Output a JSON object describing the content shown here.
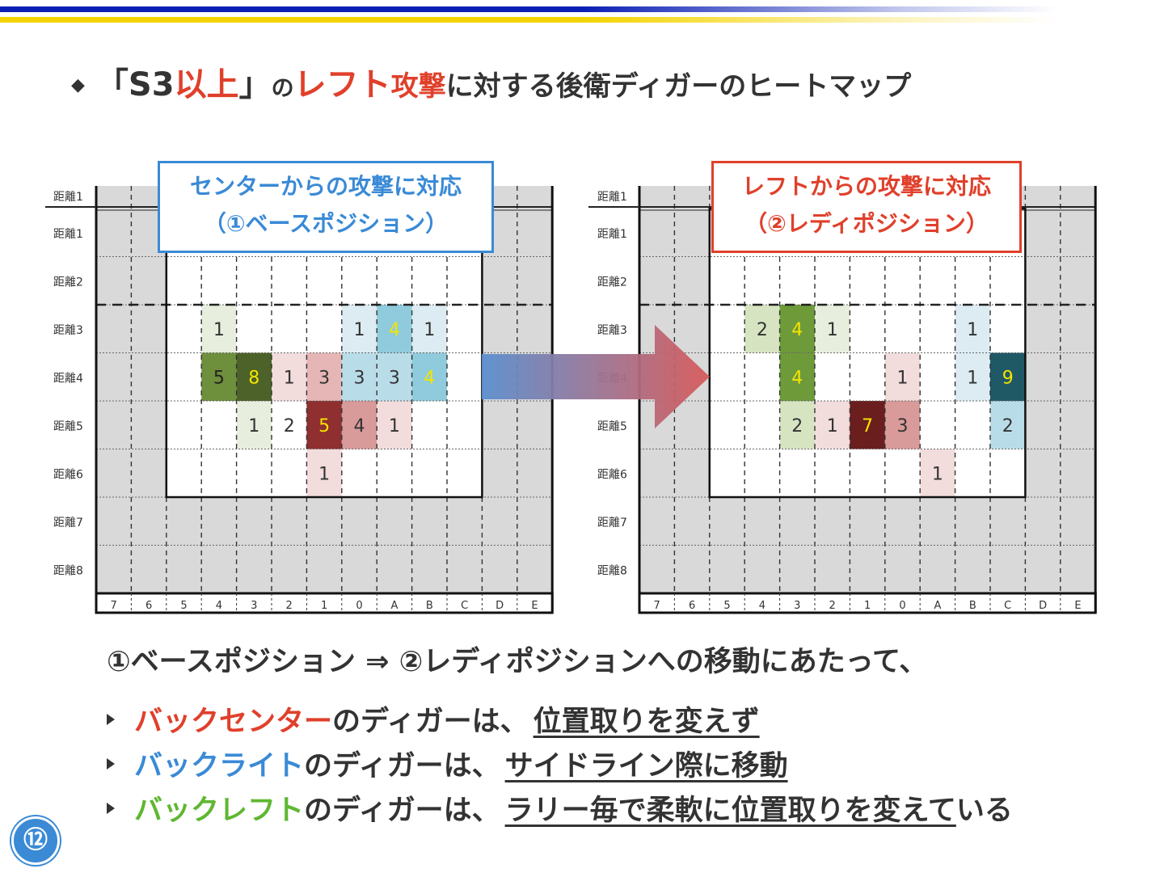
{
  "title": {
    "diamond": "◆",
    "open_bracket": "「",
    "s3": "S3",
    "ijou": "以上",
    "close_bracket": "」",
    "no1": "の",
    "left": "レフト",
    "kougeki": "攻撃",
    "rest": "に対する後衛ディガーのヒートマップ"
  },
  "grids": {
    "rows": [
      "距離1",
      "距離1",
      "距離2",
      "距離3",
      "距離4",
      "距離5",
      "距離6",
      "距離7",
      "距離8"
    ],
    "columns": [
      "7",
      "6",
      "5",
      "4",
      "3",
      "2",
      "1",
      "0",
      "A",
      "B",
      "C",
      "D",
      "E"
    ],
    "left": {
      "callout_line1": "センターからの攻撃に対応",
      "callout_line2": "（①ベースポジション）",
      "cells": [
        {
          "row": 3,
          "col": "4",
          "value": 1,
          "color": "#e8eedd",
          "text_color": "#333333"
        },
        {
          "row": 3,
          "col": "0",
          "value": 1,
          "color": "#dcecf2",
          "text_color": "#333333"
        },
        {
          "row": 3,
          "col": "A",
          "value": 4,
          "color": "#8fcbdc",
          "text_color": "#f4e400"
        },
        {
          "row": 3,
          "col": "B",
          "value": 1,
          "color": "#dcecf2",
          "text_color": "#333333"
        },
        {
          "row": 4,
          "col": "4",
          "value": 5,
          "color": "#6e8f3c",
          "text_color": "#222222"
        },
        {
          "row": 4,
          "col": "3",
          "value": 8,
          "color": "#4c6228",
          "text_color": "#f4e400"
        },
        {
          "row": 4,
          "col": "2",
          "value": 1,
          "color": "#f2dcdc",
          "text_color": "#333333"
        },
        {
          "row": 4,
          "col": "1",
          "value": 3,
          "color": "#e6b5b5",
          "text_color": "#333333"
        },
        {
          "row": 4,
          "col": "0",
          "value": 3,
          "color": "#b9dde8",
          "text_color": "#333333"
        },
        {
          "row": 4,
          "col": "A",
          "value": 3,
          "color": "#b9dde8",
          "text_color": "#333333"
        },
        {
          "row": 4,
          "col": "B",
          "value": 4,
          "color": "#8fcbdc",
          "text_color": "#f4e400"
        },
        {
          "row": 5,
          "col": "3",
          "value": 1,
          "color": "#e8eedd",
          "text_color": "#333333"
        },
        {
          "row": 5,
          "col": "2",
          "value": 2,
          "color": "#ffffff",
          "text_color": "#333333"
        },
        {
          "row": 5,
          "col": "1",
          "value": 5,
          "color": "#8f2f2f",
          "text_color": "#f4e400"
        },
        {
          "row": 5,
          "col": "0",
          "value": 4,
          "color": "#d99a9a",
          "text_color": "#333333"
        },
        {
          "row": 5,
          "col": "A",
          "value": 1,
          "color": "#f2dcdc",
          "text_color": "#333333"
        },
        {
          "row": 6,
          "col": "1",
          "value": 1,
          "color": "#f2dcdc",
          "text_color": "#333333"
        }
      ]
    },
    "right": {
      "callout_line1": "レフトからの攻撃に対応",
      "callout_line2": "（②レディポジション）",
      "cells": [
        {
          "row": 3,
          "col": "4",
          "value": 2,
          "color": "#d6e4c2",
          "text_color": "#333333"
        },
        {
          "row": 3,
          "col": "3",
          "value": 4,
          "color": "#6e9a3a",
          "text_color": "#f4e400"
        },
        {
          "row": 3,
          "col": "2",
          "value": 1,
          "color": "#e8eedd",
          "text_color": "#333333"
        },
        {
          "row": 3,
          "col": "B",
          "value": 1,
          "color": "#dcecf2",
          "text_color": "#333333"
        },
        {
          "row": 4,
          "col": "3",
          "value": 4,
          "color": "#6e9a3a",
          "text_color": "#f4e400"
        },
        {
          "row": 4,
          "col": "0",
          "value": 1,
          "color": "#f2dcdc",
          "text_color": "#333333"
        },
        {
          "row": 4,
          "col": "B",
          "value": 1,
          "color": "#dcecf2",
          "text_color": "#333333"
        },
        {
          "row": 4,
          "col": "C",
          "value": 9,
          "color": "#1f5966",
          "text_color": "#f4e400"
        },
        {
          "row": 5,
          "col": "3",
          "value": 2,
          "color": "#d6e4c2",
          "text_color": "#333333"
        },
        {
          "row": 5,
          "col": "2",
          "value": 1,
          "color": "#f2dcdc",
          "text_color": "#333333"
        },
        {
          "row": 5,
          "col": "1",
          "value": 7,
          "color": "#6a1e1e",
          "text_color": "#f4e400"
        },
        {
          "row": 5,
          "col": "0",
          "value": 3,
          "color": "#d99a9a",
          "text_color": "#333333"
        },
        {
          "row": 5,
          "col": "C",
          "value": 2,
          "color": "#b9dde8",
          "text_color": "#333333"
        },
        {
          "row": 6,
          "col": "A",
          "value": 1,
          "color": "#f2dcdc",
          "text_color": "#333333"
        }
      ]
    }
  },
  "summary": "①ベースポジション ⇒ ②レディポジションへの移動にあたって、",
  "bullets": [
    {
      "role": "バックセンター",
      "role_color": "#e0402b",
      "mid": "のディガーは、",
      "underlined": "位置取りを変えず",
      "tail": ""
    },
    {
      "role": "バックライト",
      "role_color": "#3a8ad6",
      "mid": "のディガーは、",
      "underlined": "サイドライン際に移動",
      "tail": ""
    },
    {
      "role": "バックレフト",
      "role_color": "#5fb732",
      "mid": "のディガーは、",
      "underlined": "ラリー毎で柔軟に位置取りを変えて",
      "tail": "いる"
    }
  ],
  "page_number": "⑫"
}
